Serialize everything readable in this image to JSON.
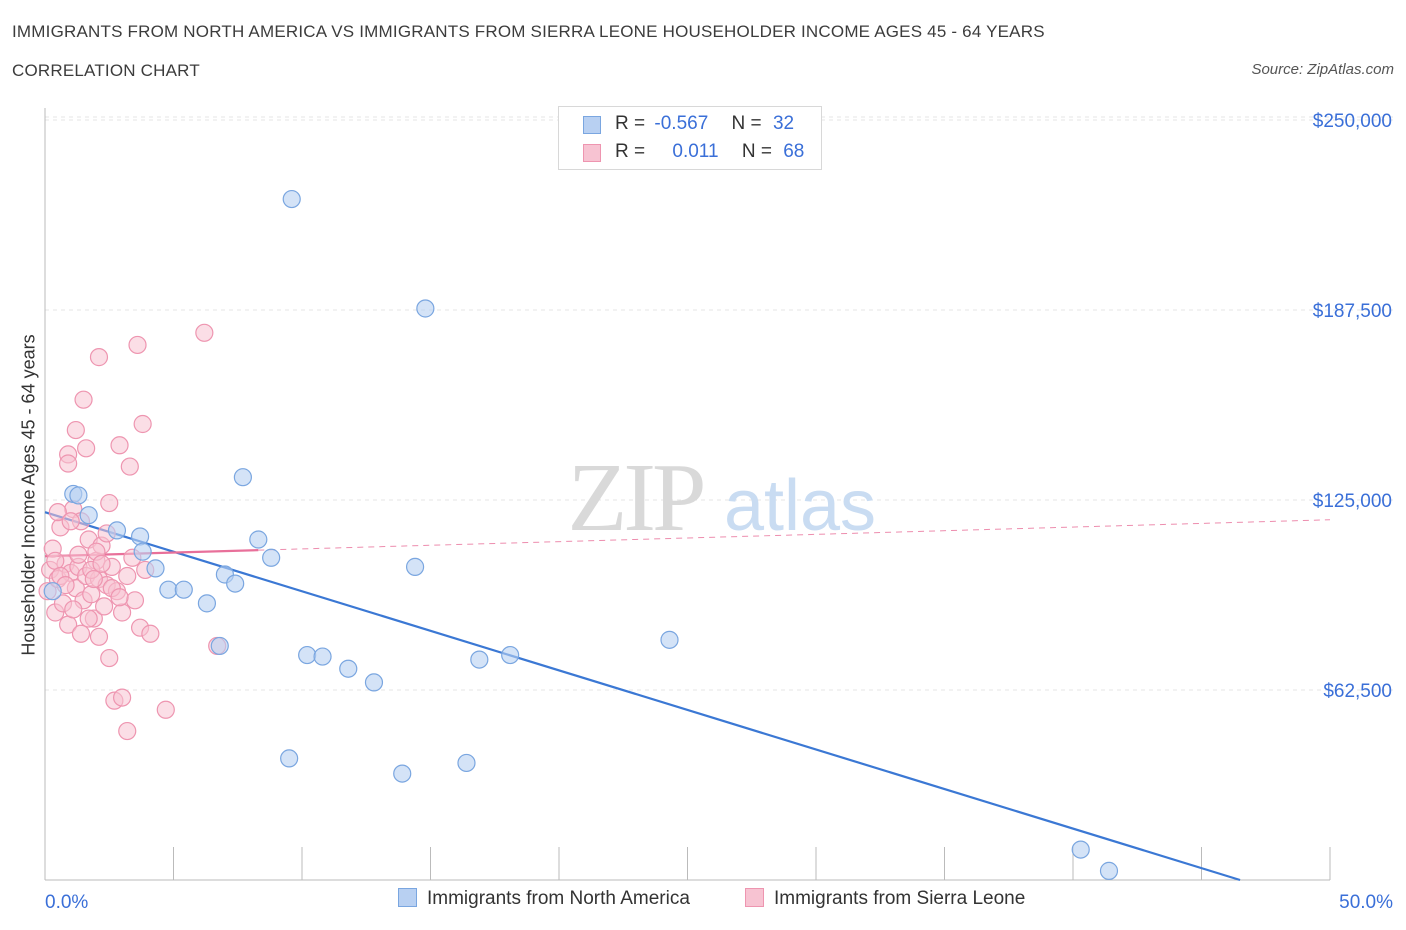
{
  "header": {
    "title": "IMMIGRANTS FROM NORTH AMERICA VS IMMIGRANTS FROM SIERRA LEONE HOUSEHOLDER INCOME AGES 45 - 64 YEARS",
    "subtitle": "CORRELATION CHART",
    "source": "Source: ZipAtlas.com"
  },
  "watermark": {
    "zip": "ZIP",
    "atlas": "atlas"
  },
  "legend": {
    "rows": [
      {
        "r_label": "R =",
        "r_value": "-0.567",
        "n_label": "N =",
        "n_value": "32"
      },
      {
        "r_label": "R =",
        "r_value": "0.011",
        "n_label": "N =",
        "n_value": "68"
      }
    ]
  },
  "colors": {
    "blue_fill": "#b8d0f2",
    "blue_stroke": "#7aa6e0",
    "blue_line": "#3b78d4",
    "pink_fill": "#f7c3d2",
    "pink_stroke": "#ee95b0",
    "pink_line": "#e8709a",
    "axis_text": "#3a6fd8",
    "grid": "#e4e4e4"
  },
  "chart_data": {
    "type": "scatter",
    "title": "IMMIGRANTS FROM NORTH AMERICA VS IMMIGRANTS FROM SIERRA LEONE HOUSEHOLDER INCOME AGES 45 - 64 YEARS",
    "xlabel": "",
    "ylabel": "Householder Income Ages 45 - 64 years",
    "xlim": [
      0,
      50
    ],
    "ylim": [
      0,
      250000
    ],
    "x_tick_labels": [
      "0.0%",
      "50.0%"
    ],
    "y_ticks": [
      62500,
      125000,
      187500,
      250000
    ],
    "y_tick_labels": [
      "$62,500",
      "$125,000",
      "$187,500",
      "$250,000"
    ],
    "grid": true,
    "legend_position": "bottom",
    "series": [
      {
        "name": "Immigrants from North America",
        "color": "#b8d0f2",
        "trend": {
          "x": [
            0,
            46.5
          ],
          "y": [
            121000,
            0
          ],
          "style": "solid"
        },
        "points": [
          [
            0.3,
            95000
          ],
          [
            1.1,
            127000
          ],
          [
            1.3,
            126500
          ],
          [
            1.7,
            120000
          ],
          [
            2.8,
            115000
          ],
          [
            3.7,
            113000
          ],
          [
            3.8,
            108000
          ],
          [
            4.3,
            102500
          ],
          [
            4.8,
            95500
          ],
          [
            5.4,
            95500
          ],
          [
            6.3,
            91000
          ],
          [
            6.8,
            77000
          ],
          [
            7.0,
            100500
          ],
          [
            7.4,
            97500
          ],
          [
            7.7,
            132500
          ],
          [
            8.3,
            112000
          ],
          [
            8.8,
            106000
          ],
          [
            9.6,
            224000
          ],
          [
            9.5,
            40000
          ],
          [
            10.2,
            74000
          ],
          [
            10.8,
            73500
          ],
          [
            11.8,
            69500
          ],
          [
            12.8,
            65000
          ],
          [
            13.9,
            35000
          ],
          [
            14.4,
            103000
          ],
          [
            14.8,
            188000
          ],
          [
            16.4,
            38500
          ],
          [
            16.9,
            72500
          ],
          [
            18.1,
            74000
          ],
          [
            24.3,
            79000
          ],
          [
            40.3,
            10000
          ],
          [
            41.4,
            3000
          ]
        ]
      },
      {
        "name": "Immigrants from Sierra Leone",
        "color": "#f7c3d2",
        "trend": {
          "x": [
            0,
            8.3
          ],
          "y": [
            106500,
            108500
          ],
          "style": "solid",
          "dashed_extension": {
            "x": [
              8.3,
              50
            ],
            "y": [
              108500,
              118500
            ]
          }
        },
        "points": [
          [
            0.1,
            95000
          ],
          [
            0.2,
            102000
          ],
          [
            0.3,
            109000
          ],
          [
            0.4,
            88000
          ],
          [
            0.5,
            99000
          ],
          [
            0.6,
            116000
          ],
          [
            0.7,
            91000
          ],
          [
            0.8,
            104000
          ],
          [
            0.9,
            84000
          ],
          [
            1.0,
            101000
          ],
          [
            1.1,
            122000
          ],
          [
            1.2,
            96000
          ],
          [
            1.3,
            103000
          ],
          [
            1.4,
            118000
          ],
          [
            1.5,
            92000
          ],
          [
            1.6,
            100000
          ],
          [
            1.7,
            112000
          ],
          [
            1.8,
            94000
          ],
          [
            1.9,
            86000
          ],
          [
            2.0,
            105000
          ],
          [
            2.1,
            99000
          ],
          [
            2.2,
            110000
          ],
          [
            2.3,
            90000
          ],
          [
            2.4,
            97000
          ],
          [
            2.6,
            103000
          ],
          [
            2.8,
            95000
          ],
          [
            3.0,
            88000
          ],
          [
            3.2,
            100000
          ],
          [
            3.4,
            106000
          ],
          [
            0.9,
            140000
          ],
          [
            0.9,
            137000
          ],
          [
            1.2,
            148000
          ],
          [
            1.5,
            158000
          ],
          [
            1.6,
            142000
          ],
          [
            2.1,
            172000
          ],
          [
            2.5,
            124000
          ],
          [
            2.9,
            143000
          ],
          [
            3.3,
            136000
          ],
          [
            3.6,
            176000
          ],
          [
            3.8,
            150000
          ],
          [
            1.4,
            81000
          ],
          [
            1.7,
            86000
          ],
          [
            2.1,
            80000
          ],
          [
            2.5,
            73000
          ],
          [
            2.7,
            59000
          ],
          [
            3.0,
            60000
          ],
          [
            3.2,
            49000
          ],
          [
            3.7,
            83000
          ],
          [
            4.1,
            81000
          ],
          [
            4.7,
            56000
          ],
          [
            6.2,
            180000
          ],
          [
            6.7,
            77000
          ],
          [
            0.5,
            121000
          ],
          [
            1.0,
            118000
          ],
          [
            1.8,
            102000
          ],
          [
            2.0,
            108000
          ],
          [
            2.4,
            114000
          ],
          [
            2.6,
            96000
          ],
          [
            3.5,
            92000
          ],
          [
            3.9,
            102000
          ],
          [
            0.4,
            105000
          ],
          [
            0.6,
            100000
          ],
          [
            0.8,
            97000
          ],
          [
            1.1,
            89000
          ],
          [
            1.3,
            107000
          ],
          [
            1.9,
            99000
          ],
          [
            2.2,
            104000
          ],
          [
            2.9,
            93000
          ]
        ]
      }
    ]
  }
}
